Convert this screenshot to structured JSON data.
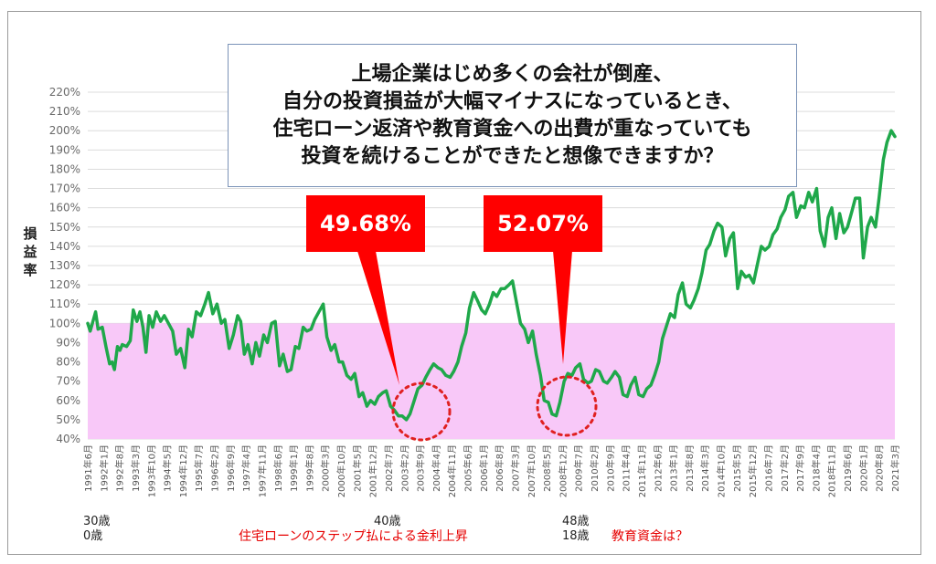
{
  "chart_data": {
    "type": "line",
    "title": "",
    "ylabel": "損益率",
    "y_ticks": [
      "220%",
      "210%",
      "200%",
      "190%",
      "180%",
      "170%",
      "160%",
      "150%",
      "140%",
      "130%",
      "120%",
      "110%",
      "100%",
      "90%",
      "80%",
      "70%",
      "60%",
      "50%",
      "40%"
    ],
    "ylim": [
      40,
      220
    ],
    "highlight_band": {
      "from": 40,
      "to": 100,
      "color": "#f8c8f8"
    },
    "series_color": "#1fa84a",
    "x_tick_labels": [
      "1991年6月",
      "1992年1月",
      "1992年8月",
      "1993年3月",
      "1993年10月",
      "1994年5月",
      "1994年12月",
      "1995年7月",
      "1996年2月",
      "1996年9月",
      "1997年4月",
      "1997年11月",
      "1998年6月",
      "1999年1月",
      "1999年8月",
      "2000年3月",
      "2000年10月",
      "2001年5月",
      "2001年12月",
      "2002年7月",
      "2003年2月",
      "2003年9月",
      "2004年4月",
      "2004年11月",
      "2005年6月",
      "2006年1月",
      "2006年8月",
      "2007年3月",
      "2007年10月",
      "2008年5月",
      "2008年12月",
      "2009年7月",
      "2010年2月",
      "2010年9月",
      "2011年4月",
      "2011年11月",
      "2012年6月",
      "2013年1月",
      "2013年8月",
      "2014年3月",
      "2014年10月",
      "2015年5月",
      "2015年12月",
      "2016年7月",
      "2017年2月",
      "2017年9月",
      "2018年4月",
      "2018年11月",
      "2019年6月",
      "2020年1月",
      "2020年8月",
      "2021年3月"
    ],
    "series": [
      {
        "points": [
          [
            0,
            100
          ],
          [
            0.4,
            96
          ],
          [
            1.3,
            106
          ],
          [
            1.7,
            97
          ],
          [
            2.4,
            98
          ],
          [
            3.0,
            88
          ],
          [
            3.6,
            79
          ],
          [
            4.0,
            80
          ],
          [
            4.4,
            76
          ],
          [
            4.9,
            88
          ],
          [
            5.3,
            86
          ],
          [
            5.7,
            89
          ],
          [
            6.4,
            88
          ],
          [
            7.0,
            91
          ],
          [
            7.5,
            107
          ],
          [
            8.1,
            101
          ],
          [
            8.6,
            106
          ],
          [
            9.1,
            98
          ],
          [
            9.6,
            85
          ],
          [
            10.1,
            104
          ],
          [
            10.7,
            98
          ],
          [
            11.3,
            106
          ],
          [
            12.0,
            101
          ],
          [
            12.6,
            104
          ],
          [
            13.3,
            100
          ],
          [
            14.0,
            96
          ],
          [
            14.6,
            84
          ],
          [
            15.3,
            87
          ],
          [
            16.0,
            77
          ],
          [
            16.6,
            97
          ],
          [
            17.2,
            93
          ],
          [
            17.9,
            106
          ],
          [
            18.6,
            104
          ],
          [
            19.3,
            110
          ],
          [
            19.9,
            116
          ],
          [
            20.6,
            105
          ],
          [
            21.3,
            110
          ],
          [
            22.0,
            100
          ],
          [
            22.6,
            102
          ],
          [
            23.3,
            87
          ],
          [
            24.0,
            94
          ],
          [
            24.7,
            104
          ],
          [
            25.2,
            101
          ],
          [
            25.8,
            84
          ],
          [
            26.4,
            89
          ],
          [
            27.1,
            79
          ],
          [
            27.7,
            90
          ],
          [
            28.3,
            83
          ],
          [
            29.0,
            94
          ],
          [
            29.6,
            90
          ],
          [
            30.3,
            100
          ],
          [
            30.9,
            101
          ],
          [
            31.6,
            78
          ],
          [
            32.2,
            84
          ],
          [
            32.9,
            75
          ],
          [
            33.5,
            76
          ],
          [
            34.2,
            88
          ],
          [
            34.8,
            87
          ],
          [
            35.5,
            98
          ],
          [
            36.1,
            96
          ],
          [
            36.8,
            97
          ],
          [
            37.4,
            102
          ],
          [
            38.1,
            106
          ],
          [
            38.8,
            110
          ],
          [
            39.4,
            93
          ],
          [
            40.1,
            86
          ],
          [
            40.7,
            89
          ],
          [
            41.4,
            80
          ],
          [
            42.0,
            80
          ],
          [
            42.7,
            73
          ],
          [
            43.4,
            71
          ],
          [
            44.0,
            74
          ],
          [
            44.7,
            62
          ],
          [
            45.3,
            64
          ],
          [
            46.0,
            57
          ],
          [
            46.6,
            60
          ],
          [
            47.3,
            58
          ],
          [
            47.9,
            62
          ],
          [
            48.6,
            64
          ],
          [
            49.2,
            65
          ],
          [
            49.9,
            57
          ],
          [
            50.5,
            55
          ],
          [
            51.2,
            52
          ],
          [
            51.8,
            52
          ],
          [
            52.5,
            50
          ],
          [
            53.1,
            53
          ],
          [
            53.8,
            60
          ],
          [
            54.4,
            66
          ],
          [
            55.1,
            68
          ],
          [
            55.7,
            72
          ],
          [
            56.4,
            76
          ],
          [
            57.0,
            79
          ],
          [
            57.7,
            77
          ],
          [
            58.3,
            76
          ],
          [
            59.0,
            73
          ],
          [
            59.7,
            72
          ],
          [
            60.3,
            75
          ],
          [
            61.0,
            80
          ],
          [
            61.6,
            88
          ],
          [
            62.3,
            95
          ],
          [
            62.9,
            108
          ],
          [
            63.6,
            116
          ],
          [
            64.2,
            112
          ],
          [
            64.9,
            107
          ],
          [
            65.5,
            105
          ],
          [
            66.2,
            110
          ],
          [
            66.8,
            116
          ],
          [
            67.4,
            114
          ],
          [
            68.1,
            118
          ],
          [
            68.7,
            118
          ],
          [
            69.4,
            120
          ],
          [
            70.0,
            122
          ],
          [
            70.7,
            110
          ],
          [
            71.3,
            100
          ],
          [
            72.0,
            97
          ],
          [
            72.6,
            90
          ],
          [
            73.3,
            96
          ],
          [
            73.9,
            84
          ],
          [
            74.6,
            73
          ],
          [
            75.2,
            60
          ],
          [
            75.9,
            59
          ],
          [
            76.5,
            53
          ],
          [
            77.2,
            52
          ],
          [
            77.8,
            59
          ],
          [
            78.5,
            70
          ],
          [
            79.1,
            74
          ],
          [
            79.8,
            73
          ],
          [
            80.4,
            77
          ],
          [
            81.1,
            79
          ],
          [
            81.7,
            71
          ],
          [
            82.4,
            69
          ],
          [
            83.0,
            70
          ],
          [
            83.7,
            76
          ],
          [
            84.3,
            75
          ],
          [
            85.0,
            70
          ],
          [
            85.6,
            69
          ],
          [
            86.3,
            72
          ],
          [
            86.9,
            75
          ],
          [
            87.6,
            72
          ],
          [
            88.2,
            63
          ],
          [
            88.9,
            62
          ],
          [
            89.5,
            68
          ],
          [
            90.2,
            72
          ],
          [
            90.8,
            63
          ],
          [
            91.5,
            62
          ],
          [
            92.1,
            66
          ],
          [
            92.8,
            68
          ],
          [
            93.4,
            73
          ],
          [
            94.1,
            80
          ],
          [
            94.7,
            92
          ],
          [
            95.4,
            99
          ],
          [
            96.0,
            105
          ],
          [
            96.7,
            103
          ],
          [
            97.3,
            115
          ],
          [
            98.0,
            121
          ],
          [
            98.6,
            110
          ],
          [
            99.3,
            108
          ],
          [
            99.9,
            112
          ],
          [
            100.6,
            118
          ],
          [
            101.2,
            126
          ],
          [
            101.9,
            138
          ],
          [
            102.5,
            141
          ],
          [
            103.2,
            148
          ],
          [
            103.8,
            152
          ],
          [
            104.5,
            150
          ],
          [
            105.1,
            135
          ],
          [
            105.8,
            144
          ],
          [
            106.4,
            147
          ],
          [
            107.1,
            118
          ],
          [
            107.7,
            127
          ],
          [
            108.4,
            124
          ],
          [
            109.0,
            125
          ],
          [
            109.7,
            121
          ],
          [
            110.3,
            130
          ],
          [
            111.0,
            140
          ],
          [
            111.6,
            138
          ],
          [
            112.3,
            140
          ],
          [
            112.9,
            146
          ],
          [
            113.6,
            149
          ],
          [
            114.2,
            155
          ],
          [
            114.9,
            159
          ],
          [
            115.5,
            166
          ],
          [
            116.2,
            168
          ],
          [
            116.8,
            155
          ],
          [
            117.5,
            161
          ],
          [
            118.1,
            160
          ],
          [
            118.8,
            168
          ],
          [
            119.4,
            163
          ],
          [
            120.1,
            170
          ],
          [
            120.7,
            148
          ],
          [
            121.4,
            140
          ],
          [
            122.0,
            155
          ],
          [
            122.6,
            160
          ],
          [
            123.3,
            144
          ],
          [
            123.9,
            157
          ],
          [
            124.6,
            147
          ],
          [
            125.2,
            150
          ],
          [
            125.9,
            158
          ],
          [
            126.5,
            165
          ],
          [
            127.2,
            165
          ],
          [
            127.8,
            134
          ],
          [
            128.5,
            150
          ],
          [
            129.1,
            155
          ],
          [
            129.8,
            150
          ],
          [
            130.4,
            165
          ],
          [
            131.1,
            185
          ],
          [
            131.7,
            194
          ],
          [
            132.4,
            200
          ],
          [
            133.0,
            197
          ]
        ]
      }
    ],
    "annotations": [
      {
        "label": "49.68%",
        "color": "#ff0000"
      },
      {
        "label": "52.07%",
        "color": "#ff0000"
      }
    ]
  },
  "question": {
    "lines": [
      "上場企業はじめ多くの会社が倒産、",
      "自分の投資損益が大幅マイナスになっているとき、",
      "住宅ローン返済や教育資金への出費が重なっていても",
      "投資を続けることができたと想像できますか？"
    ]
  },
  "footer": {
    "age_1991_self": "30歳",
    "age_1991_child": "0歳",
    "age_2001_self": "40歳",
    "event_loan": "住宅ローンのステップ払による金利上昇",
    "age_2009_self": "48歳",
    "age_2009_child": "18歳",
    "event_education": "教育資金は？"
  }
}
